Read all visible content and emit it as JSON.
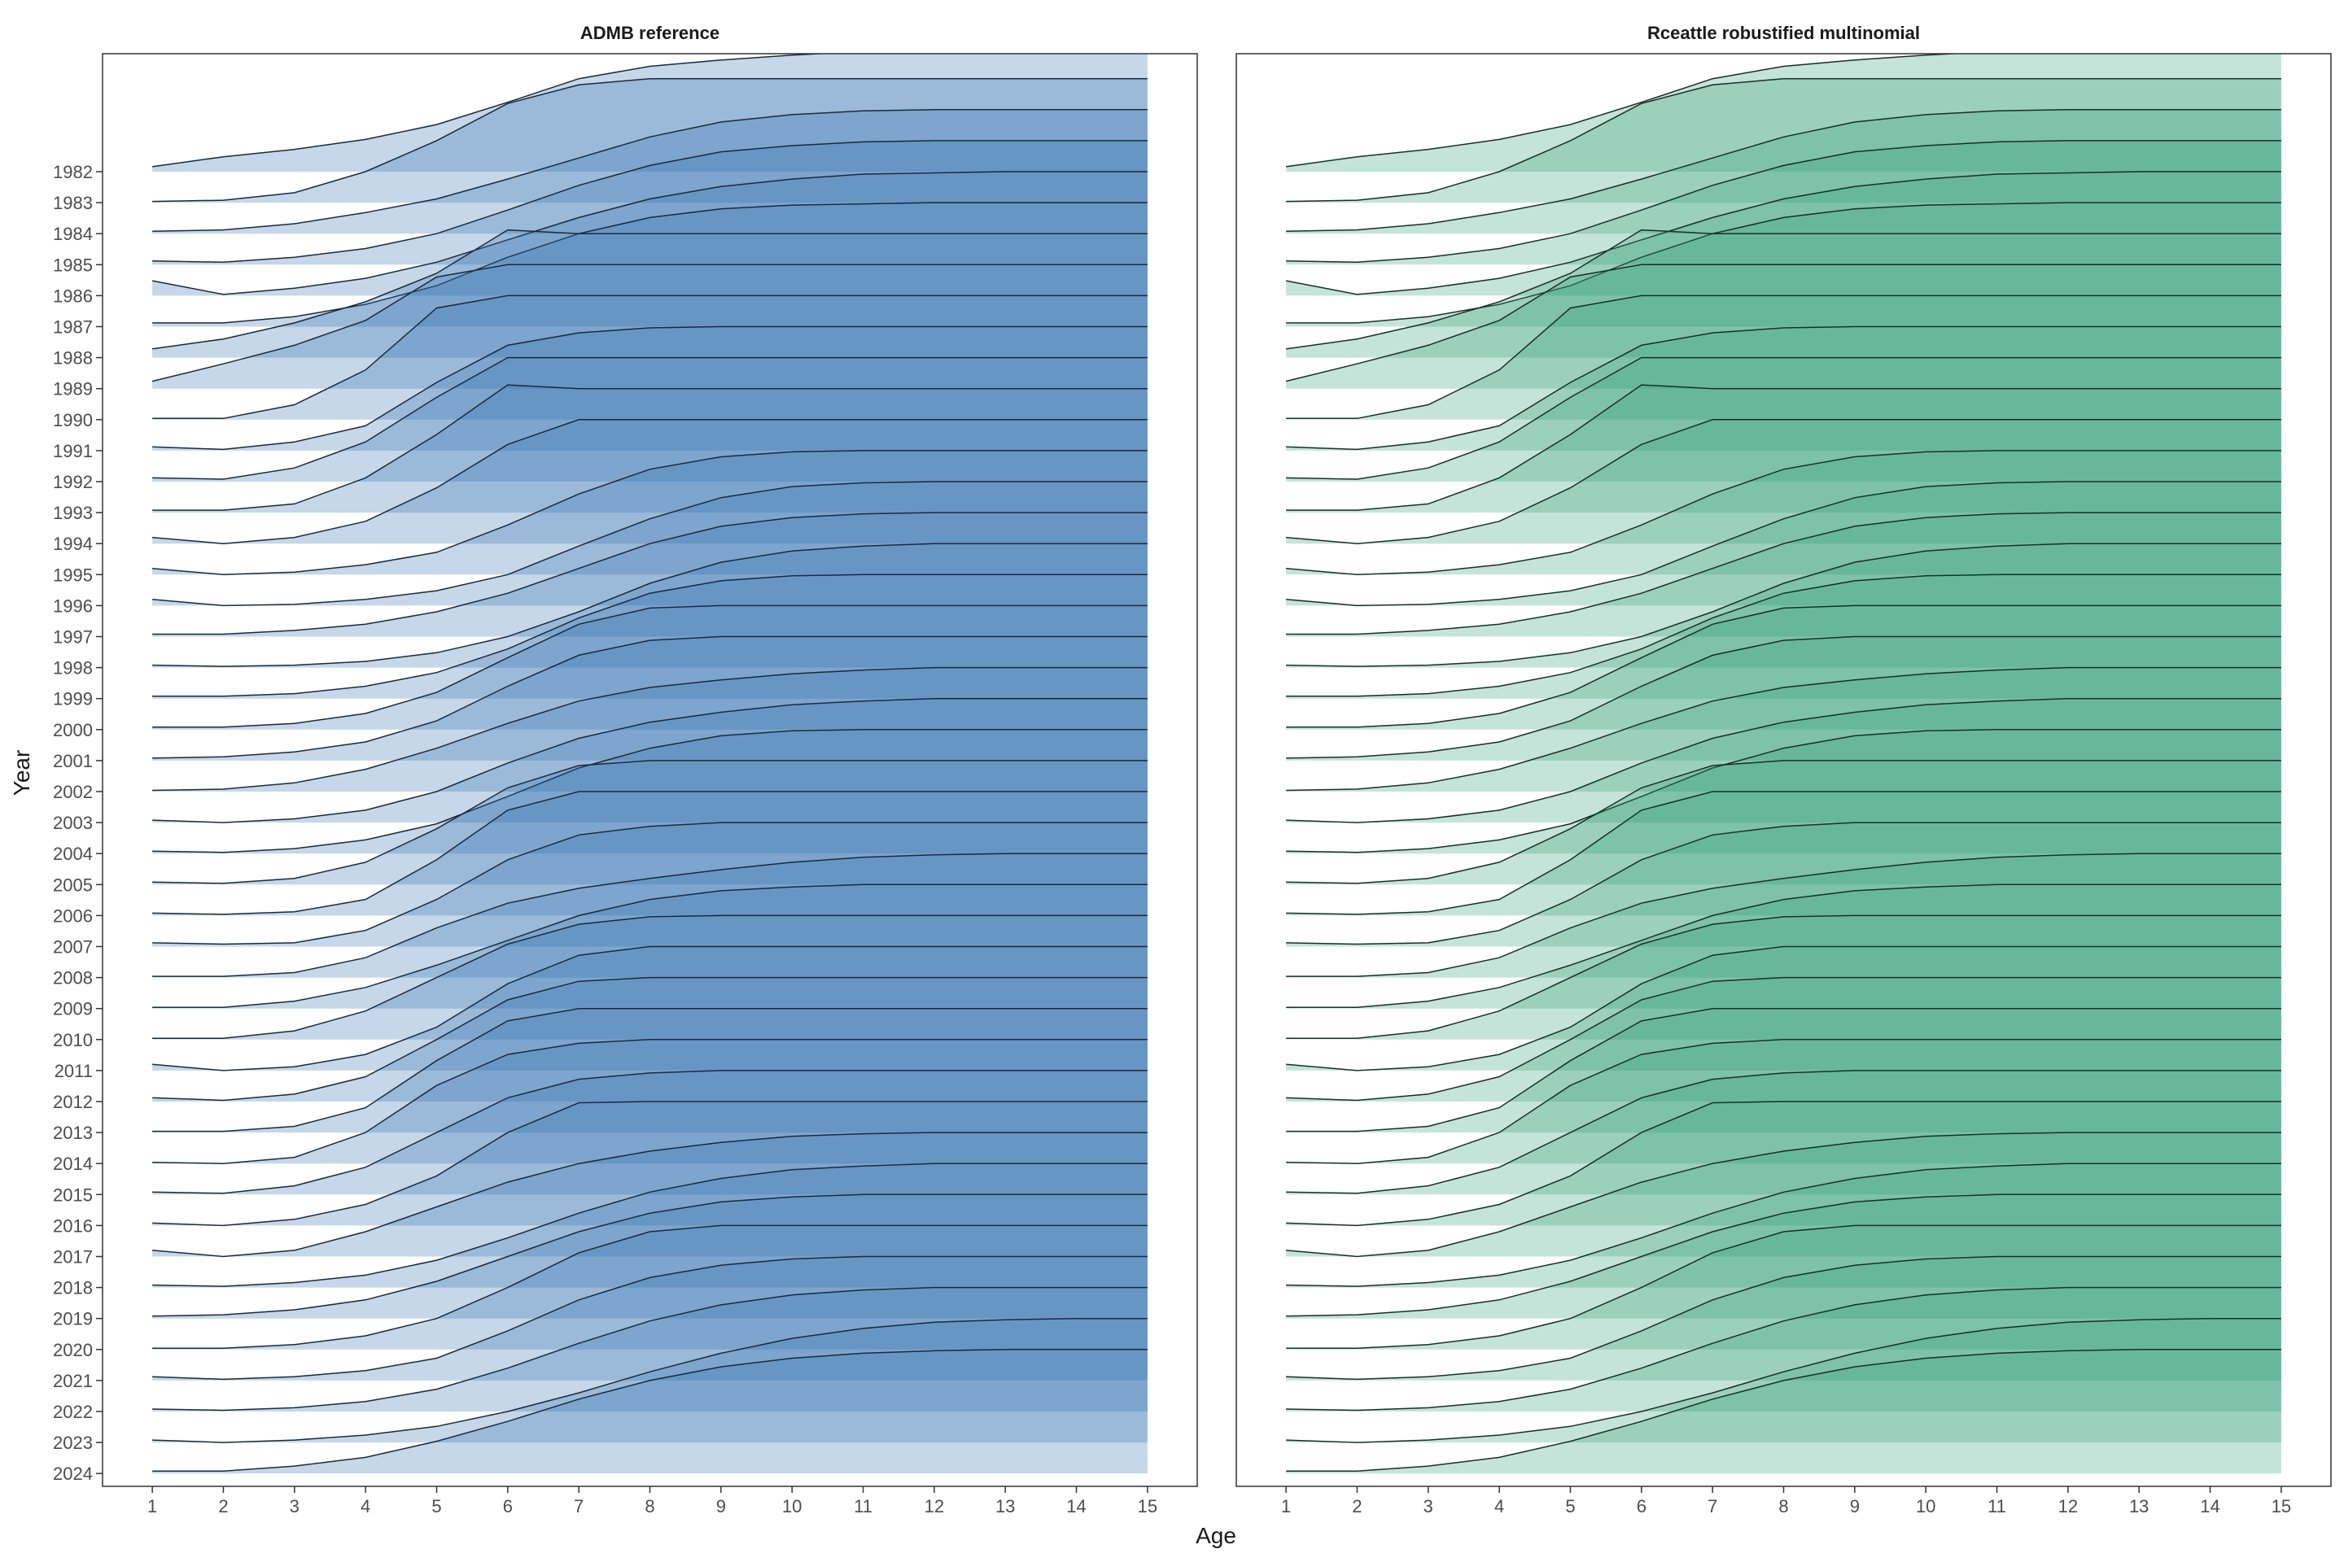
{
  "chart_data": {
    "type": "area",
    "xlabel": "Age",
    "ylabel": "Year",
    "x": [
      1,
      2,
      3,
      4,
      5,
      6,
      7,
      8,
      9,
      10,
      11,
      12,
      13,
      14,
      15
    ],
    "xlim": [
      0.3,
      15.7
    ],
    "years": [
      1982,
      1983,
      1984,
      1985,
      1986,
      1987,
      1988,
      1989,
      1990,
      1991,
      1992,
      1993,
      1994,
      1995,
      1996,
      1997,
      1998,
      1999,
      2000,
      2001,
      2002,
      2003,
      2004,
      2005,
      2006,
      2007,
      2008,
      2009,
      2010,
      2011,
      2012,
      2013,
      2014,
      2015,
      2016,
      2017,
      2018,
      2019,
      2020,
      2021,
      2022,
      2023,
      2024
    ],
    "row_spacing_in_years": 1,
    "grid": false,
    "description_of_values": "Ridgeline of selectivity-at-age per year; each ridge rises from 0 at its baseline year to a height of about 4 year-rows at full selectivity (1.0).",
    "panels": [
      {
        "title": "ADMB reference",
        "fill_color": "#2f6fb0",
        "fill_color_light": "#c0d3e6",
        "line_color": "#1a2a3a",
        "series": [
          {
            "year": 1982,
            "values": [
              0.04,
              0.12,
              0.18,
              0.26,
              0.38,
              0.56,
              0.75,
              0.85,
              0.9,
              0.94,
              0.97,
              0.99,
              1.0,
              1.0,
              1.0
            ]
          },
          {
            "year": 1983,
            "values": [
              0.01,
              0.02,
              0.08,
              0.25,
              0.5,
              0.8,
              0.95,
              1.0,
              1.0,
              1.0,
              1.0,
              1.0,
              1.0,
              1.0,
              1.0
            ]
          },
          {
            "year": 1984,
            "values": [
              0.02,
              0.03,
              0.08,
              0.17,
              0.28,
              0.44,
              0.61,
              0.78,
              0.9,
              0.96,
              0.99,
              1.0,
              1.0,
              1.0,
              1.0
            ]
          },
          {
            "year": 1985,
            "values": [
              0.03,
              0.02,
              0.06,
              0.13,
              0.25,
              0.44,
              0.64,
              0.8,
              0.91,
              0.96,
              0.99,
              1.0,
              1.0,
              1.0,
              1.0
            ]
          },
          {
            "year": 1986,
            "values": [
              0.12,
              0.01,
              0.06,
              0.14,
              0.27,
              0.45,
              0.63,
              0.78,
              0.88,
              0.94,
              0.98,
              0.99,
              1.0,
              1.0,
              1.0
            ]
          },
          {
            "year": 1987,
            "values": [
              0.03,
              0.03,
              0.08,
              0.18,
              0.33,
              0.56,
              0.75,
              0.88,
              0.95,
              0.98,
              0.99,
              1.0,
              1.0,
              1.0,
              1.0
            ]
          },
          {
            "year": 1988,
            "values": [
              0.07,
              0.15,
              0.28,
              0.45,
              0.68,
              1.03,
              1.0,
              1.0,
              1.0,
              1.0,
              1.0,
              1.0,
              1.0,
              1.0,
              1.0
            ]
          },
          {
            "year": 1989,
            "values": [
              0.06,
              0.2,
              0.35,
              0.55,
              0.9,
              1.0,
              1.0,
              1.0,
              1.0,
              1.0,
              1.0,
              1.0,
              1.0,
              1.0,
              1.0
            ]
          },
          {
            "year": 1990,
            "values": [
              0.01,
              0.01,
              0.12,
              0.4,
              0.9,
              1.0,
              1.0,
              1.0,
              1.0,
              1.0,
              1.0,
              1.0,
              1.0,
              1.0,
              1.0
            ]
          },
          {
            "year": 1991,
            "values": [
              0.03,
              0.01,
              0.07,
              0.2,
              0.55,
              0.85,
              0.95,
              0.99,
              1.0,
              1.0,
              1.0,
              1.0,
              1.0,
              1.0,
              1.0
            ]
          },
          {
            "year": 1992,
            "values": [
              0.03,
              0.02,
              0.11,
              0.32,
              0.68,
              1.0,
              1.0,
              1.0,
              1.0,
              1.0,
              1.0,
              1.0,
              1.0,
              1.0,
              1.0
            ]
          },
          {
            "year": 1993,
            "values": [
              0.02,
              0.02,
              0.07,
              0.28,
              0.63,
              1.03,
              1.0,
              1.0,
              1.0,
              1.0,
              1.0,
              1.0,
              1.0,
              1.0,
              1.0
            ]
          },
          {
            "year": 1994,
            "values": [
              0.05,
              0.0,
              0.05,
              0.18,
              0.45,
              0.8,
              1.0,
              1.0,
              1.0,
              1.0,
              1.0,
              1.0,
              1.0,
              1.0,
              1.0
            ]
          },
          {
            "year": 1995,
            "values": [
              0.05,
              0.0,
              0.02,
              0.08,
              0.18,
              0.4,
              0.65,
              0.85,
              0.95,
              0.99,
              1.0,
              1.0,
              1.0,
              1.0,
              1.0
            ]
          },
          {
            "year": 1996,
            "values": [
              0.05,
              0.0,
              0.01,
              0.05,
              0.12,
              0.25,
              0.48,
              0.7,
              0.87,
              0.96,
              0.99,
              1.0,
              1.0,
              1.0,
              1.0
            ]
          },
          {
            "year": 1997,
            "values": [
              0.02,
              0.02,
              0.05,
              0.1,
              0.2,
              0.35,
              0.55,
              0.75,
              0.89,
              0.96,
              0.99,
              1.0,
              1.0,
              1.0,
              1.0
            ]
          },
          {
            "year": 1998,
            "values": [
              0.02,
              0.01,
              0.02,
              0.05,
              0.12,
              0.25,
              0.45,
              0.68,
              0.85,
              0.94,
              0.98,
              1.0,
              1.0,
              1.0,
              1.0
            ]
          },
          {
            "year": 1999,
            "values": [
              0.02,
              0.02,
              0.04,
              0.1,
              0.21,
              0.4,
              0.65,
              0.85,
              0.95,
              0.99,
              1.0,
              1.0,
              1.0,
              1.0,
              1.0
            ]
          },
          {
            "year": 2000,
            "values": [
              0.02,
              0.02,
              0.05,
              0.13,
              0.3,
              0.58,
              0.85,
              0.98,
              1.0,
              1.0,
              1.0,
              1.0,
              1.0,
              1.0,
              1.0
            ]
          },
          {
            "year": 2001,
            "values": [
              0.02,
              0.03,
              0.07,
              0.15,
              0.32,
              0.6,
              0.85,
              0.97,
              1.0,
              1.0,
              1.0,
              1.0,
              1.0,
              1.0,
              1.0
            ]
          },
          {
            "year": 2002,
            "values": [
              0.01,
              0.02,
              0.07,
              0.18,
              0.35,
              0.55,
              0.73,
              0.84,
              0.9,
              0.95,
              0.98,
              1.0,
              1.0,
              1.0,
              1.0
            ]
          },
          {
            "year": 2003,
            "values": [
              0.02,
              0.0,
              0.03,
              0.1,
              0.25,
              0.48,
              0.68,
              0.81,
              0.89,
              0.95,
              0.98,
              1.0,
              1.0,
              1.0,
              1.0
            ]
          },
          {
            "year": 2004,
            "values": [
              0.02,
              0.01,
              0.04,
              0.11,
              0.24,
              0.46,
              0.69,
              0.85,
              0.95,
              0.99,
              1.0,
              1.0,
              1.0,
              1.0,
              1.0
            ]
          },
          {
            "year": 2005,
            "values": [
              0.02,
              0.01,
              0.05,
              0.18,
              0.45,
              0.78,
              0.96,
              1.0,
              1.0,
              1.0,
              1.0,
              1.0,
              1.0,
              1.0,
              1.0
            ]
          },
          {
            "year": 2006,
            "values": [
              0.02,
              0.01,
              0.03,
              0.13,
              0.45,
              0.85,
              1.0,
              1.0,
              1.0,
              1.0,
              1.0,
              1.0,
              1.0,
              1.0,
              1.0
            ]
          },
          {
            "year": 2007,
            "values": [
              0.03,
              0.02,
              0.03,
              0.13,
              0.38,
              0.7,
              0.9,
              0.97,
              1.0,
              1.0,
              1.0,
              1.0,
              1.0,
              1.0,
              1.0
            ]
          },
          {
            "year": 2008,
            "values": [
              0.01,
              0.01,
              0.04,
              0.16,
              0.4,
              0.6,
              0.72,
              0.8,
              0.87,
              0.93,
              0.97,
              0.99,
              1.0,
              1.0,
              1.0
            ]
          },
          {
            "year": 2009,
            "values": [
              0.01,
              0.01,
              0.06,
              0.17,
              0.35,
              0.55,
              0.75,
              0.88,
              0.95,
              0.98,
              1.0,
              1.0,
              1.0,
              1.0,
              1.0
            ]
          },
          {
            "year": 2010,
            "values": [
              0.01,
              0.01,
              0.07,
              0.23,
              0.5,
              0.77,
              0.93,
              0.99,
              1.0,
              1.0,
              1.0,
              1.0,
              1.0,
              1.0,
              1.0
            ]
          },
          {
            "year": 2011,
            "values": [
              0.05,
              0.0,
              0.03,
              0.13,
              0.35,
              0.7,
              0.93,
              1.0,
              1.0,
              1.0,
              1.0,
              1.0,
              1.0,
              1.0,
              1.0
            ]
          },
          {
            "year": 2012,
            "values": [
              0.03,
              0.01,
              0.06,
              0.2,
              0.5,
              0.82,
              0.97,
              1.0,
              1.0,
              1.0,
              1.0,
              1.0,
              1.0,
              1.0,
              1.0
            ]
          },
          {
            "year": 2013,
            "values": [
              0.01,
              0.01,
              0.05,
              0.2,
              0.58,
              0.9,
              1.0,
              1.0,
              1.0,
              1.0,
              1.0,
              1.0,
              1.0,
              1.0,
              1.0
            ]
          },
          {
            "year": 2014,
            "values": [
              0.01,
              0.0,
              0.05,
              0.25,
              0.63,
              0.88,
              0.97,
              1.0,
              1.0,
              1.0,
              1.0,
              1.0,
              1.0,
              1.0,
              1.0
            ]
          },
          {
            "year": 2015,
            "values": [
              0.02,
              0.01,
              0.07,
              0.22,
              0.5,
              0.78,
              0.93,
              0.98,
              1.0,
              1.0,
              1.0,
              1.0,
              1.0,
              1.0,
              1.0
            ]
          },
          {
            "year": 2016,
            "values": [
              0.02,
              0.0,
              0.05,
              0.17,
              0.4,
              0.75,
              0.99,
              1.0,
              1.0,
              1.0,
              1.0,
              1.0,
              1.0,
              1.0,
              1.0
            ]
          },
          {
            "year": 2017,
            "values": [
              0.05,
              0.0,
              0.05,
              0.2,
              0.4,
              0.6,
              0.75,
              0.85,
              0.92,
              0.97,
              0.99,
              1.0,
              1.0,
              1.0,
              1.0
            ]
          },
          {
            "year": 2018,
            "values": [
              0.02,
              0.01,
              0.04,
              0.1,
              0.22,
              0.4,
              0.6,
              0.77,
              0.88,
              0.95,
              0.98,
              1.0,
              1.0,
              1.0,
              1.0
            ]
          },
          {
            "year": 2019,
            "values": [
              0.02,
              0.03,
              0.07,
              0.15,
              0.3,
              0.5,
              0.7,
              0.85,
              0.94,
              0.98,
              1.0,
              1.0,
              1.0,
              1.0,
              1.0
            ]
          },
          {
            "year": 2020,
            "values": [
              0.01,
              0.01,
              0.04,
              0.11,
              0.25,
              0.5,
              0.78,
              0.95,
              1.0,
              1.0,
              1.0,
              1.0,
              1.0,
              1.0,
              1.0
            ]
          },
          {
            "year": 2021,
            "values": [
              0.03,
              0.01,
              0.03,
              0.08,
              0.18,
              0.4,
              0.65,
              0.83,
              0.93,
              0.98,
              1.0,
              1.0,
              1.0,
              1.0,
              1.0
            ]
          },
          {
            "year": 2022,
            "values": [
              0.02,
              0.01,
              0.03,
              0.08,
              0.18,
              0.35,
              0.55,
              0.73,
              0.86,
              0.94,
              0.98,
              1.0,
              1.0,
              1.0,
              1.0
            ]
          },
          {
            "year": 2023,
            "values": [
              0.02,
              0.0,
              0.02,
              0.06,
              0.13,
              0.25,
              0.4,
              0.57,
              0.72,
              0.84,
              0.92,
              0.97,
              0.99,
              1.0,
              1.0
            ]
          },
          {
            "year": 2024,
            "values": [
              0.02,
              0.02,
              0.06,
              0.13,
              0.26,
              0.42,
              0.6,
              0.75,
              0.86,
              0.93,
              0.97,
              0.99,
              1.0,
              1.0,
              1.0
            ]
          }
        ]
      },
      {
        "title": "Rceattle robustified multinomial",
        "fill_color": "#2e9e75",
        "fill_color_light": "#c1e2d5",
        "line_color": "#1a2e28",
        "same_values_as_panel": 0
      }
    ]
  }
}
